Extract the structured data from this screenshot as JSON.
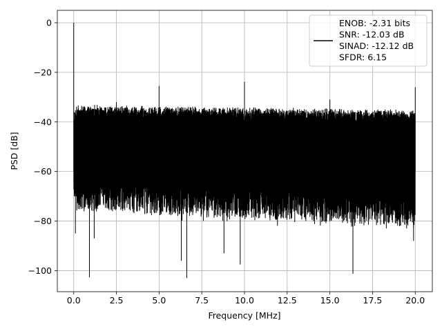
{
  "chart_data": {
    "type": "line",
    "xlabel": "Frequency [MHz]",
    "ylabel": "PSD [dB]",
    "xlim": [
      -0.96,
      21.0
    ],
    "ylim": [
      -108.5,
      5
    ],
    "xticks": [
      0,
      2.5,
      5,
      7.5,
      10,
      12.5,
      15,
      17.5,
      20
    ],
    "xtick_labels": [
      "0.0",
      "2.5",
      "5.0",
      "7.5",
      "10.0",
      "12.5",
      "15.0",
      "17.5",
      "20.0"
    ],
    "yticks": [
      0,
      -20,
      -40,
      -60,
      -80,
      -100
    ],
    "ytick_labels": [
      "0",
      "−20",
      "−40",
      "−60",
      "−80",
      "−100"
    ],
    "grid": true,
    "line_color": "#000000",
    "noise": {
      "x_range": [
        0,
        20
      ],
      "top_envelope": [
        -33,
        -35
      ],
      "bottom_typical": [
        -75,
        -82
      ],
      "floor_min": -103
    },
    "spikes": [
      {
        "x": 0.0,
        "y": 0.0
      },
      {
        "x": 2.5,
        "y": -32.0
      },
      {
        "x": 5.0,
        "y": -25.5
      },
      {
        "x": 10.0,
        "y": -23.8
      },
      {
        "x": 15.0,
        "y": -31.0
      },
      {
        "x": 20.0,
        "y": -26.0
      }
    ],
    "dips": [
      {
        "x": 0.1,
        "y": -85.0
      },
      {
        "x": 0.92,
        "y": -102.7
      },
      {
        "x": 1.2,
        "y": -87.0
      },
      {
        "x": 6.3,
        "y": -96.0
      },
      {
        "x": 6.62,
        "y": -103.0
      },
      {
        "x": 8.8,
        "y": -93.0
      },
      {
        "x": 9.75,
        "y": -97.5
      },
      {
        "x": 16.35,
        "y": -101.3
      },
      {
        "x": 19.9,
        "y": -88.0
      }
    ],
    "legend": {
      "placement": "top-right",
      "series_label": "ENOB: -2.31 bits\nSNR: -12.03 dB\nSINAD: -12.12 dB\nSFDR: 6.15"
    }
  }
}
